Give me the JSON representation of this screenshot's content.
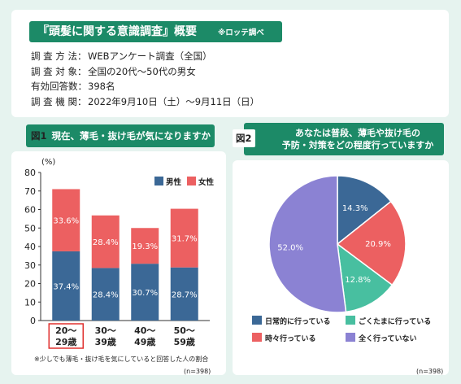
{
  "survey": {
    "title": "『頭髪に関する意識調査』概要",
    "note": "※ロッテ調べ",
    "rows": [
      {
        "label": "調 査 方 法：",
        "value": "WEBアンケート調査（全国）"
      },
      {
        "label": "調 査 対 象：",
        "value": "全国の20代〜50代の男女"
      },
      {
        "label": "有効回答数：",
        "value": "398名"
      },
      {
        "label": "調 査 機 関：",
        "value": "2022年9月10日（土）〜9月11日（日）"
      }
    ]
  },
  "fig1": {
    "tag": "図1",
    "title": "現在、薄毛・抜け毛が気になりますか",
    "footnote": "※少しでも薄毛・抜け毛を気にしていると回答した人の割合",
    "n": "(n=398)"
  },
  "fig2": {
    "tag": "図2",
    "title_line1": "あなたは普段、薄毛や抜け毛の",
    "title_line2": "予防・対策をどの程度行っていますか",
    "n": "(n=398)"
  },
  "chart_data": [
    {
      "type": "bar",
      "stacked": true,
      "ylabel": "(%)",
      "ylim": [
        0,
        80
      ],
      "yticks": [
        0,
        10,
        20,
        30,
        40,
        50,
        60,
        70,
        80
      ],
      "categories": [
        {
          "line1": "20〜",
          "line2": "29歳",
          "highlight": true
        },
        {
          "line1": "30〜",
          "line2": "39歳",
          "highlight": false
        },
        {
          "line1": "40〜",
          "line2": "49歳",
          "highlight": false
        },
        {
          "line1": "50〜",
          "line2": "59歳",
          "highlight": false
        }
      ],
      "series": [
        {
          "name": "男性",
          "color": "#3b6896",
          "values": [
            37.4,
            28.4,
            30.7,
            28.7
          ],
          "labels": [
            "37.4%",
            "28.4%",
            "30.7%",
            "28.7%"
          ]
        },
        {
          "name": "女性",
          "color": "#ec6061",
          "values": [
            33.6,
            28.4,
            19.3,
            31.7
          ],
          "labels": [
            "33.6%",
            "28.4%",
            "19.3%",
            "31.7%"
          ]
        }
      ],
      "legend_position": "top-right"
    },
    {
      "type": "pie",
      "slices": [
        {
          "name": "日常的に行っている",
          "value": 14.3,
          "label": "14.3%",
          "color": "#3b6896"
        },
        {
          "name": "時々行っている",
          "value": 20.9,
          "label": "20.9%",
          "color": "#ec6061"
        },
        {
          "name": "ごくたまに行っている",
          "value": 12.8,
          "label": "12.8%",
          "color": "#48bfa0"
        },
        {
          "name": "全く行っていない",
          "value": 52.0,
          "label": "52.0%",
          "color": "#8b82d3"
        }
      ],
      "legend_order": [
        0,
        2,
        1,
        3
      ],
      "legend_position": "bottom"
    }
  ]
}
